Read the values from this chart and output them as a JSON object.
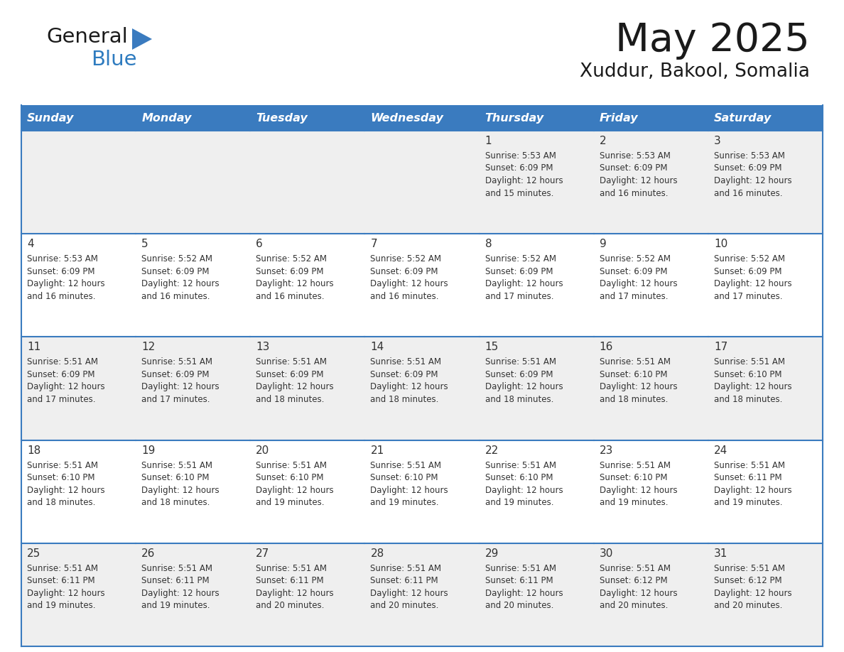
{
  "title": "May 2025",
  "subtitle": "Xuddur, Bakool, Somalia",
  "days_of_week": [
    "Sunday",
    "Monday",
    "Tuesday",
    "Wednesday",
    "Thursday",
    "Friday",
    "Saturday"
  ],
  "header_bg_color": "#3a7bbf",
  "header_text_color": "#ffffff",
  "row_colors": [
    "#efefef",
    "#ffffff"
  ],
  "border_color": "#3a7bbf",
  "text_color": "#333333",
  "day_number_color": "#333333",
  "logo_triangle_color": "#3a7bbf",
  "logo_blue_color": "#2e7bbf",
  "calendar_data": [
    [
      {
        "day": "",
        "sunrise": "",
        "sunset": "",
        "daylight": ""
      },
      {
        "day": "",
        "sunrise": "",
        "sunset": "",
        "daylight": ""
      },
      {
        "day": "",
        "sunrise": "",
        "sunset": "",
        "daylight": ""
      },
      {
        "day": "",
        "sunrise": "",
        "sunset": "",
        "daylight": ""
      },
      {
        "day": "1",
        "sunrise": "5:53 AM",
        "sunset": "6:09 PM",
        "daylight": "12 hours and 15 minutes."
      },
      {
        "day": "2",
        "sunrise": "5:53 AM",
        "sunset": "6:09 PM",
        "daylight": "12 hours and 16 minutes."
      },
      {
        "day": "3",
        "sunrise": "5:53 AM",
        "sunset": "6:09 PM",
        "daylight": "12 hours and 16 minutes."
      }
    ],
    [
      {
        "day": "4",
        "sunrise": "5:53 AM",
        "sunset": "6:09 PM",
        "daylight": "12 hours and 16 minutes."
      },
      {
        "day": "5",
        "sunrise": "5:52 AM",
        "sunset": "6:09 PM",
        "daylight": "12 hours and 16 minutes."
      },
      {
        "day": "6",
        "sunrise": "5:52 AM",
        "sunset": "6:09 PM",
        "daylight": "12 hours and 16 minutes."
      },
      {
        "day": "7",
        "sunrise": "5:52 AM",
        "sunset": "6:09 PM",
        "daylight": "12 hours and 16 minutes."
      },
      {
        "day": "8",
        "sunrise": "5:52 AM",
        "sunset": "6:09 PM",
        "daylight": "12 hours and 17 minutes."
      },
      {
        "day": "9",
        "sunrise": "5:52 AM",
        "sunset": "6:09 PM",
        "daylight": "12 hours and 17 minutes."
      },
      {
        "day": "10",
        "sunrise": "5:52 AM",
        "sunset": "6:09 PM",
        "daylight": "12 hours and 17 minutes."
      }
    ],
    [
      {
        "day": "11",
        "sunrise": "5:51 AM",
        "sunset": "6:09 PM",
        "daylight": "12 hours and 17 minutes."
      },
      {
        "day": "12",
        "sunrise": "5:51 AM",
        "sunset": "6:09 PM",
        "daylight": "12 hours and 17 minutes."
      },
      {
        "day": "13",
        "sunrise": "5:51 AM",
        "sunset": "6:09 PM",
        "daylight": "12 hours and 18 minutes."
      },
      {
        "day": "14",
        "sunrise": "5:51 AM",
        "sunset": "6:09 PM",
        "daylight": "12 hours and 18 minutes."
      },
      {
        "day": "15",
        "sunrise": "5:51 AM",
        "sunset": "6:09 PM",
        "daylight": "12 hours and 18 minutes."
      },
      {
        "day": "16",
        "sunrise": "5:51 AM",
        "sunset": "6:10 PM",
        "daylight": "12 hours and 18 minutes."
      },
      {
        "day": "17",
        "sunrise": "5:51 AM",
        "sunset": "6:10 PM",
        "daylight": "12 hours and 18 minutes."
      }
    ],
    [
      {
        "day": "18",
        "sunrise": "5:51 AM",
        "sunset": "6:10 PM",
        "daylight": "12 hours and 18 minutes."
      },
      {
        "day": "19",
        "sunrise": "5:51 AM",
        "sunset": "6:10 PM",
        "daylight": "12 hours and 18 minutes."
      },
      {
        "day": "20",
        "sunrise": "5:51 AM",
        "sunset": "6:10 PM",
        "daylight": "12 hours and 19 minutes."
      },
      {
        "day": "21",
        "sunrise": "5:51 AM",
        "sunset": "6:10 PM",
        "daylight": "12 hours and 19 minutes."
      },
      {
        "day": "22",
        "sunrise": "5:51 AM",
        "sunset": "6:10 PM",
        "daylight": "12 hours and 19 minutes."
      },
      {
        "day": "23",
        "sunrise": "5:51 AM",
        "sunset": "6:10 PM",
        "daylight": "12 hours and 19 minutes."
      },
      {
        "day": "24",
        "sunrise": "5:51 AM",
        "sunset": "6:11 PM",
        "daylight": "12 hours and 19 minutes."
      }
    ],
    [
      {
        "day": "25",
        "sunrise": "5:51 AM",
        "sunset": "6:11 PM",
        "daylight": "12 hours and 19 minutes."
      },
      {
        "day": "26",
        "sunrise": "5:51 AM",
        "sunset": "6:11 PM",
        "daylight": "12 hours and 19 minutes."
      },
      {
        "day": "27",
        "sunrise": "5:51 AM",
        "sunset": "6:11 PM",
        "daylight": "12 hours and 20 minutes."
      },
      {
        "day": "28",
        "sunrise": "5:51 AM",
        "sunset": "6:11 PM",
        "daylight": "12 hours and 20 minutes."
      },
      {
        "day": "29",
        "sunrise": "5:51 AM",
        "sunset": "6:11 PM",
        "daylight": "12 hours and 20 minutes."
      },
      {
        "day": "30",
        "sunrise": "5:51 AM",
        "sunset": "6:12 PM",
        "daylight": "12 hours and 20 minutes."
      },
      {
        "day": "31",
        "sunrise": "5:51 AM",
        "sunset": "6:12 PM",
        "daylight": "12 hours and 20 minutes."
      }
    ]
  ]
}
